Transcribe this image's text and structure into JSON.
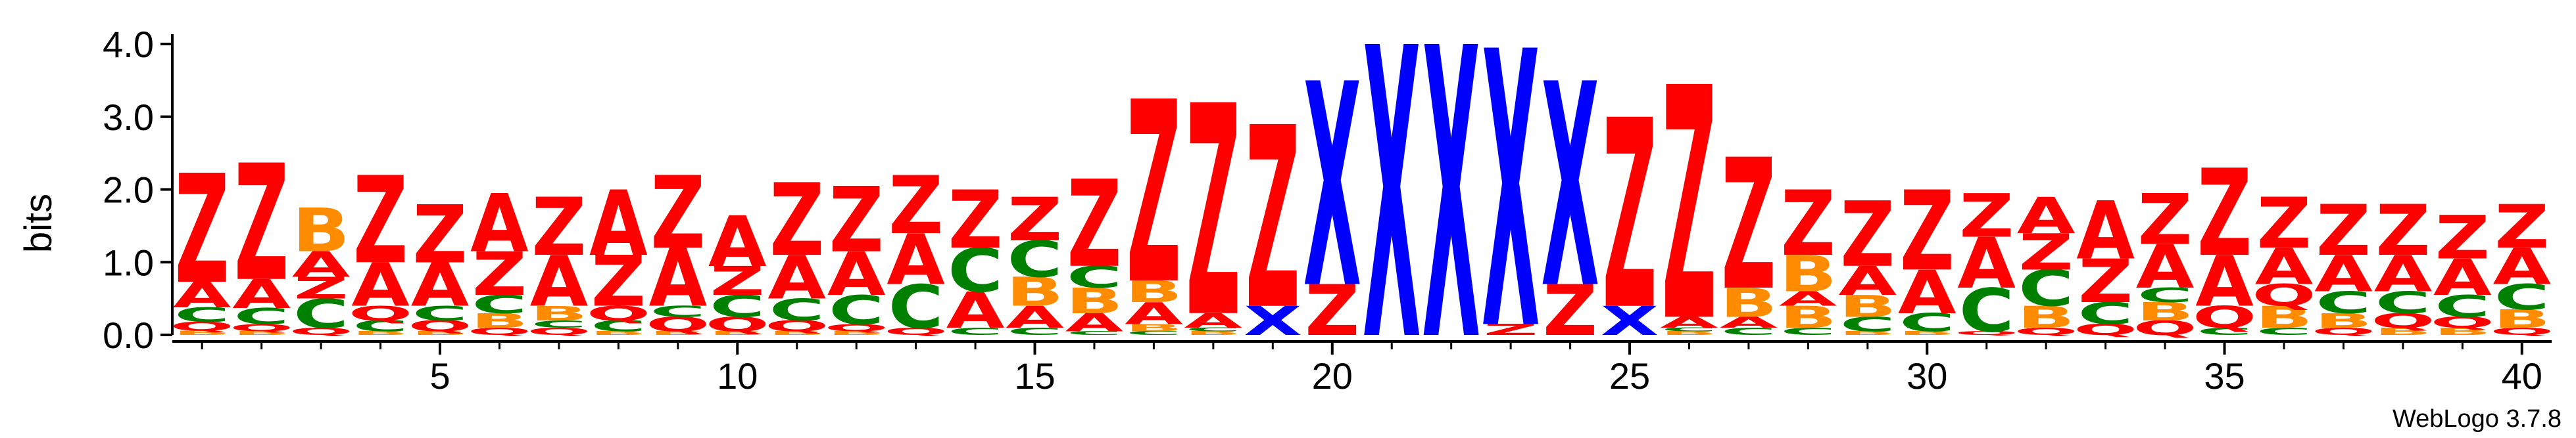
{
  "chart_data": {
    "type": "sequence-logo",
    "ylabel": "bits",
    "ylim": [
      0,
      4.0
    ],
    "yticks": [
      "0.0",
      "1.0",
      "2.0",
      "3.0",
      "4.0"
    ],
    "x_range": [
      1,
      40
    ],
    "xticks": [
      "5",
      "10",
      "15",
      "20",
      "25",
      "30",
      "35",
      "40"
    ],
    "grid": false,
    "credit": "WebLogo 3.7.8",
    "colors": {
      "Z": "#ff0000",
      "A": "#ff0000",
      "X": "#0000ff",
      "B": "#ff8c00",
      "C": "#008000",
      "Q": "#ff0000"
    },
    "positions": [
      {
        "pos": 1,
        "stack": [
          [
            "B",
            0.06
          ],
          [
            "Q",
            0.12
          ],
          [
            "C",
            0.2
          ],
          [
            "A",
            0.35
          ],
          [
            "Z",
            1.5
          ]
        ]
      },
      {
        "pos": 2,
        "stack": [
          [
            "B",
            0.05
          ],
          [
            "Q",
            0.1
          ],
          [
            "C",
            0.22
          ],
          [
            "A",
            0.4
          ],
          [
            "Z",
            1.6
          ]
        ]
      },
      {
        "pos": 3,
        "stack": [
          [
            "Q",
            0.1
          ],
          [
            "C",
            0.4
          ],
          [
            "Z",
            0.3
          ],
          [
            "A",
            0.35
          ],
          [
            "B",
            0.6
          ]
        ]
      },
      {
        "pos": 4,
        "stack": [
          [
            "B",
            0.05
          ],
          [
            "C",
            0.15
          ],
          [
            "Q",
            0.2
          ],
          [
            "A",
            0.6
          ],
          [
            "Z",
            1.2
          ]
        ]
      },
      {
        "pos": 5,
        "stack": [
          [
            "B",
            0.05
          ],
          [
            "Q",
            0.15
          ],
          [
            "C",
            0.2
          ],
          [
            "A",
            0.6
          ],
          [
            "Z",
            0.8
          ]
        ]
      },
      {
        "pos": 6,
        "stack": [
          [
            "Q",
            0.1
          ],
          [
            "B",
            0.2
          ],
          [
            "C",
            0.25
          ],
          [
            "Z",
            0.6
          ],
          [
            "A",
            0.8
          ]
        ]
      },
      {
        "pos": 7,
        "stack": [
          [
            "Q",
            0.1
          ],
          [
            "C",
            0.1
          ],
          [
            "B",
            0.2
          ],
          [
            "A",
            0.7
          ],
          [
            "Z",
            0.8
          ]
        ]
      },
      {
        "pos": 8,
        "stack": [
          [
            "B",
            0.05
          ],
          [
            "C",
            0.15
          ],
          [
            "Q",
            0.2
          ],
          [
            "Z",
            0.7
          ],
          [
            "A",
            0.9
          ]
        ]
      },
      {
        "pos": 9,
        "stack": [
          [
            "B",
            0.05
          ],
          [
            "Q",
            0.2
          ],
          [
            "C",
            0.15
          ],
          [
            "A",
            0.8
          ],
          [
            "Z",
            1.0
          ]
        ]
      },
      {
        "pos": 10,
        "stack": [
          [
            "B",
            0.05
          ],
          [
            "Q",
            0.2
          ],
          [
            "C",
            0.3
          ],
          [
            "Z",
            0.4
          ],
          [
            "A",
            0.7
          ]
        ]
      },
      {
        "pos": 11,
        "stack": [
          [
            "B",
            0.05
          ],
          [
            "Q",
            0.15
          ],
          [
            "C",
            0.3
          ],
          [
            "A",
            0.6
          ],
          [
            "Z",
            1.0
          ]
        ]
      },
      {
        "pos": 12,
        "stack": [
          [
            "B",
            0.05
          ],
          [
            "Q",
            0.1
          ],
          [
            "C",
            0.4
          ],
          [
            "A",
            0.6
          ],
          [
            "Z",
            0.9
          ]
        ]
      },
      {
        "pos": 13,
        "stack": [
          [
            "Q",
            0.1
          ],
          [
            "C",
            0.6
          ],
          [
            "A",
            0.7
          ],
          [
            "Z",
            0.8
          ]
        ]
      },
      {
        "pos": 14,
        "stack": [
          [
            "C",
            0.1
          ],
          [
            "A",
            0.5
          ],
          [
            "C",
            0.6
          ],
          [
            "Z",
            0.8
          ]
        ]
      },
      {
        "pos": 15,
        "stack": [
          [
            "C",
            0.1
          ],
          [
            "A",
            0.3
          ],
          [
            "B",
            0.4
          ],
          [
            "C",
            0.5
          ],
          [
            "Z",
            0.6
          ]
        ]
      },
      {
        "pos": 16,
        "stack": [
          [
            "C",
            0.05
          ],
          [
            "A",
            0.25
          ],
          [
            "B",
            0.35
          ],
          [
            "C",
            0.3
          ],
          [
            "Z",
            1.2
          ]
        ]
      },
      {
        "pos": 17,
        "stack": [
          [
            "C",
            0.05
          ],
          [
            "B",
            0.1
          ],
          [
            "A",
            0.3
          ],
          [
            "B",
            0.3
          ],
          [
            "Z",
            2.5
          ]
        ]
      },
      {
        "pos": 18,
        "stack": [
          [
            "B",
            0.05
          ],
          [
            "C",
            0.05
          ],
          [
            "A",
            0.2
          ],
          [
            "Z",
            2.9
          ]
        ]
      },
      {
        "pos": 19,
        "stack": [
          [
            "X",
            0.4
          ],
          [
            "Z",
            2.5
          ]
        ]
      },
      {
        "pos": 20,
        "stack": [
          [
            "Z",
            0.7
          ],
          [
            "X",
            2.8
          ]
        ]
      },
      {
        "pos": 21,
        "stack": [
          [
            "X",
            4.0
          ]
        ]
      },
      {
        "pos": 22,
        "stack": [
          [
            "X",
            4.0
          ]
        ]
      },
      {
        "pos": 23,
        "stack": [
          [
            "Z",
            0.15
          ],
          [
            "X",
            3.8
          ]
        ]
      },
      {
        "pos": 24,
        "stack": [
          [
            "Z",
            0.7
          ],
          [
            "X",
            2.8
          ]
        ]
      },
      {
        "pos": 25,
        "stack": [
          [
            "X",
            0.4
          ],
          [
            "Z",
            2.6
          ]
        ]
      },
      {
        "pos": 26,
        "stack": [
          [
            "B",
            0.05
          ],
          [
            "C",
            0.05
          ],
          [
            "A",
            0.15
          ],
          [
            "Z",
            3.2
          ]
        ]
      },
      {
        "pos": 27,
        "stack": [
          [
            "C",
            0.1
          ],
          [
            "A",
            0.15
          ],
          [
            "B",
            0.4
          ],
          [
            "Z",
            1.8
          ]
        ]
      },
      {
        "pos": 28,
        "stack": [
          [
            "C",
            0.1
          ],
          [
            "B",
            0.3
          ],
          [
            "A",
            0.2
          ],
          [
            "B",
            0.5
          ],
          [
            "Z",
            0.9
          ]
        ]
      },
      {
        "pos": 29,
        "stack": [
          [
            "B",
            0.05
          ],
          [
            "C",
            0.2
          ],
          [
            "B",
            0.3
          ],
          [
            "A",
            0.4
          ],
          [
            "Z",
            0.9
          ]
        ]
      },
      {
        "pos": 30,
        "stack": [
          [
            "B",
            0.05
          ],
          [
            "C",
            0.25
          ],
          [
            "A",
            0.6
          ],
          [
            "Z",
            1.1
          ]
        ]
      },
      {
        "pos": 31,
        "stack": [
          [
            "Q",
            0.05
          ],
          [
            "C",
            0.6
          ],
          [
            "A",
            0.7
          ],
          [
            "Z",
            0.6
          ]
        ]
      },
      {
        "pos": 32,
        "stack": [
          [
            "Q",
            0.1
          ],
          [
            "B",
            0.3
          ],
          [
            "C",
            0.5
          ],
          [
            "Z",
            0.5
          ],
          [
            "A",
            0.5
          ]
        ]
      },
      {
        "pos": 33,
        "stack": [
          [
            "Q",
            0.15
          ],
          [
            "C",
            0.3
          ],
          [
            "Z",
            0.6
          ],
          [
            "A",
            0.8
          ]
        ]
      },
      {
        "pos": 34,
        "stack": [
          [
            "Q",
            0.2
          ],
          [
            "B",
            0.25
          ],
          [
            "C",
            0.2
          ],
          [
            "A",
            0.6
          ],
          [
            "Z",
            0.7
          ]
        ]
      },
      {
        "pos": 35,
        "stack": [
          [
            "C",
            0.1
          ],
          [
            "Q",
            0.3
          ],
          [
            "A",
            0.7
          ],
          [
            "Z",
            1.2
          ]
        ]
      },
      {
        "pos": 36,
        "stack": [
          [
            "C",
            0.1
          ],
          [
            "B",
            0.3
          ],
          [
            "Q",
            0.3
          ],
          [
            "A",
            0.5
          ],
          [
            "Z",
            0.7
          ]
        ]
      },
      {
        "pos": 37,
        "stack": [
          [
            "Q",
            0.1
          ],
          [
            "B",
            0.2
          ],
          [
            "C",
            0.3
          ],
          [
            "A",
            0.5
          ],
          [
            "Z",
            0.7
          ]
        ]
      },
      {
        "pos": 38,
        "stack": [
          [
            "B",
            0.1
          ],
          [
            "Q",
            0.2
          ],
          [
            "C",
            0.3
          ],
          [
            "A",
            0.5
          ],
          [
            "Z",
            0.7
          ]
        ]
      },
      {
        "pos": 39,
        "stack": [
          [
            "B",
            0.1
          ],
          [
            "Q",
            0.15
          ],
          [
            "C",
            0.3
          ],
          [
            "A",
            0.5
          ],
          [
            "Z",
            0.6
          ]
        ]
      },
      {
        "pos": 40,
        "stack": [
          [
            "Q",
            0.1
          ],
          [
            "B",
            0.25
          ],
          [
            "C",
            0.35
          ],
          [
            "A",
            0.5
          ],
          [
            "Z",
            0.6
          ]
        ]
      }
    ]
  }
}
